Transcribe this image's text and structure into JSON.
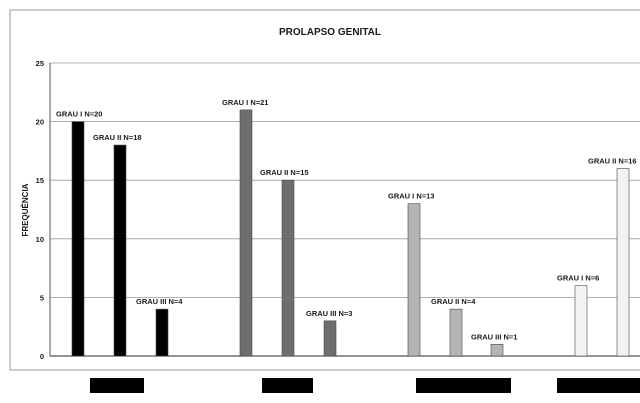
{
  "chart_data": {
    "type": "bar",
    "title": "PROLAPSO GENITAL",
    "ylabel": "FREQUÊNCIA",
    "xlabel": "",
    "ylim": [
      0,
      25
    ],
    "yticks": [
      "0",
      "5",
      "10",
      "15",
      "20",
      "25"
    ],
    "grid": true,
    "legend": "none",
    "categories": [
      "",
      "",
      "",
      ""
    ],
    "groups": [
      {
        "color": "#000000",
        "bars": [
          {
            "label": "GRAU I N=20",
            "value": 20
          },
          {
            "label": "GRAU II N=18",
            "value": 18
          },
          {
            "label": "GRAU III N=4",
            "value": 4
          }
        ]
      },
      {
        "color": "#6e6e6e",
        "bars": [
          {
            "label": "GRAU I N=21",
            "value": 21
          },
          {
            "label": "GRAU II N=15",
            "value": 15
          },
          {
            "label": "GRAU III N=3",
            "value": 3
          }
        ]
      },
      {
        "color": "#b4b4b4",
        "bars": [
          {
            "label": "GRAU I N=13",
            "value": 13
          },
          {
            "label": "GRAU II N=4",
            "value": 4
          },
          {
            "label": "GRAU III N=1",
            "value": 1
          }
        ]
      },
      {
        "color": "#f2f2f2",
        "bars": [
          {
            "label": "GRAU I N=6",
            "value": 6
          },
          {
            "label": "GRAU II N=16",
            "value": 16
          }
        ]
      }
    ]
  }
}
